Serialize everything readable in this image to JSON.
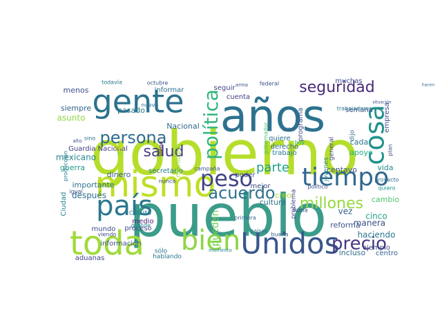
{
  "chart_data": {
    "type": "wordcloud",
    "words": [
      {
        "text": "gobierno",
        "color": "#b5de2b"
      },
      {
        "text": "pueblo",
        "color": "#3b9c8a"
      },
      {
        "text": "años",
        "color": "#2c728e"
      },
      {
        "text": "gente",
        "color": "#2c728e"
      },
      {
        "text": "toda",
        "color": "#a0da39"
      },
      {
        "text": "mismo",
        "color": "#bddf26"
      },
      {
        "text": "Unidos",
        "color": "#39568c"
      },
      {
        "text": "país",
        "color": "#2a788e"
      },
      {
        "text": "bien",
        "color": "#8ed645"
      },
      {
        "text": "tiempo",
        "color": "#31688e"
      },
      {
        "text": "peso",
        "color": "#414487"
      },
      {
        "text": "cosa",
        "color": "#21918c"
      },
      {
        "text": "precio",
        "color": "#453781"
      },
      {
        "text": "seguridad",
        "color": "#482878"
      },
      {
        "text": "persona",
        "color": "#2f6c8e"
      },
      {
        "text": "política",
        "color": "#31b57b"
      },
      {
        "text": "acuerdo",
        "color": "#2c718e"
      },
      {
        "text": "millones",
        "color": "#95d840"
      },
      {
        "text": "salud",
        "color": "#433e85"
      },
      {
        "text": "parte",
        "color": "#1fa088"
      },
      {
        "text": "manera",
        "color": "#3d4d8a"
      },
      {
        "text": "haciendo",
        "color": "#2a768e"
      },
      {
        "text": "ejemplo",
        "color": "#3e4a89"
      },
      {
        "text": "pueden",
        "color": "#6ece58"
      },
      {
        "text": "mexicano",
        "color": "#25848e"
      },
      {
        "text": "guerra",
        "color": "#1f998a"
      },
      {
        "text": "siempre",
        "color": "#33628d"
      },
      {
        "text": "asunto",
        "color": "#8fd744"
      },
      {
        "text": "menos",
        "color": "#3c4f8a"
      },
      {
        "text": "pasado",
        "color": "#2a788e"
      },
      {
        "text": "Nacional",
        "color": "#31688e"
      },
      {
        "text": "Guardia Nacional",
        "color": "#433d84"
      },
      {
        "text": "aduanas",
        "color": "#404688"
      },
      {
        "text": "información",
        "color": "#3b528b"
      },
      {
        "text": "medio",
        "color": "#482173"
      },
      {
        "text": "mundo",
        "color": "#3e4c8a"
      },
      {
        "text": "proceso",
        "color": "#3f4889"
      },
      {
        "text": "después",
        "color": "#2e6e8e"
      },
      {
        "text": "importante",
        "color": "#2d708e"
      },
      {
        "text": "dinero",
        "color": "#365c8d"
      },
      {
        "text": "secretario",
        "color": "#287c8e"
      },
      {
        "text": "centavo",
        "color": "#3b528b"
      },
      {
        "text": "vida",
        "color": "#21908d"
      },
      {
        "text": "cultura",
        "color": "#2c738e"
      },
      {
        "text": "poder",
        "color": "#3d4e8a"
      },
      {
        "text": "mejor",
        "color": "#3e4989"
      },
      {
        "text": "creo",
        "color": "#b2dd2d"
      },
      {
        "text": "cambio",
        "color": "#4ec36b"
      },
      {
        "text": "cinco",
        "color": "#20a386"
      },
      {
        "text": "vez",
        "color": "#35608d"
      },
      {
        "text": "reforma",
        "color": "#3a538b"
      },
      {
        "text": "incluso",
        "color": "#2f6b8e"
      },
      {
        "text": "centro",
        "color": "#34618d"
      },
      {
        "text": "semana",
        "color": "#3b528b"
      },
      {
        "text": "cada",
        "color": "#2c738e"
      },
      {
        "text": "apoyo",
        "color": "#28ae80"
      },
      {
        "text": "empresa",
        "color": "#3c4f8a"
      },
      {
        "text": "muchas",
        "color": "#3e4a89"
      },
      {
        "text": "trabajadores",
        "color": "#2a788e"
      },
      {
        "text": "cuenta",
        "color": "#433e85"
      },
      {
        "text": "programa",
        "color": "#3b528b"
      },
      {
        "text": "trabajo",
        "color": "#2a788e"
      },
      {
        "text": "problema",
        "color": "#424186"
      },
      {
        "text": "quiere",
        "color": "#2d708e"
      },
      {
        "text": "derecho",
        "color": "#31688e"
      },
      {
        "text": "tren",
        "color": "#34618d"
      },
      {
        "text": "hoy",
        "color": "#27ad81"
      },
      {
        "text": "dijo",
        "color": "#2e6f8e"
      },
      {
        "text": "plan",
        "color": "#3e4a89"
      },
      {
        "text": "general",
        "color": "#414487"
      },
      {
        "text": "jóvenes",
        "color": "#24878e"
      },
      {
        "text": "seguir",
        "color": "#404588"
      },
      {
        "text": "informar",
        "color": "#2d708e"
      },
      {
        "text": "federal",
        "color": "#3b528b"
      },
      {
        "text": "octubre",
        "color": "#3a548c"
      },
      {
        "text": "todavía",
        "color": "#2a778e"
      },
      {
        "text": "nueva",
        "color": "#2c718e"
      },
      {
        "text": "producción",
        "color": "#287d8e"
      },
      {
        "text": "Ciudad",
        "color": "#26828e"
      },
      {
        "text": "sino",
        "color": "#31688e"
      },
      {
        "text": "igual",
        "color": "#3b528b"
      },
      {
        "text": "alto",
        "color": "#3e4989"
      },
      {
        "text": "dar",
        "color": "#d8e219"
      },
      {
        "text": "ir",
        "color": "#7ad151"
      },
      {
        "text": "nunca",
        "color": "#3f4788"
      },
      {
        "text": "sólo",
        "color": "#2c728e"
      },
      {
        "text": "hablando",
        "color": "#2b748e"
      },
      {
        "text": "primera",
        "color": "#33638d"
      },
      {
        "text": "buena",
        "color": "#35608d"
      },
      {
        "text": "países",
        "color": "#2c728e"
      },
      {
        "text": "Rusia",
        "color": "#3f4889"
      },
      {
        "text": "CUEVAS",
        "color": "#2a788e"
      },
      {
        "text": "grande",
        "color": "#26828e"
      },
      {
        "text": "viendo",
        "color": "#3e4c8a"
      },
      {
        "text": "municipio",
        "color": "#9bd93c"
      },
      {
        "text": "campaña",
        "color": "#3b528b"
      },
      {
        "text": "político",
        "color": "#3d4d8a"
      },
      {
        "text": "proyecto",
        "color": "#2e6e8e"
      },
      {
        "text": "quiero",
        "color": "#20928c"
      },
      {
        "text": "viene",
        "color": "#440154"
      },
      {
        "text": "momento",
        "color": "#25838e"
      },
      {
        "text": "arma",
        "color": "#3b528b"
      },
      {
        "text": "gobernador",
        "color": "#4ac16d"
      },
      {
        "text": "situación",
        "color": "#3e4989"
      },
      {
        "text": "hacen",
        "color": "#31688e"
      }
    ],
    "title": ""
  }
}
